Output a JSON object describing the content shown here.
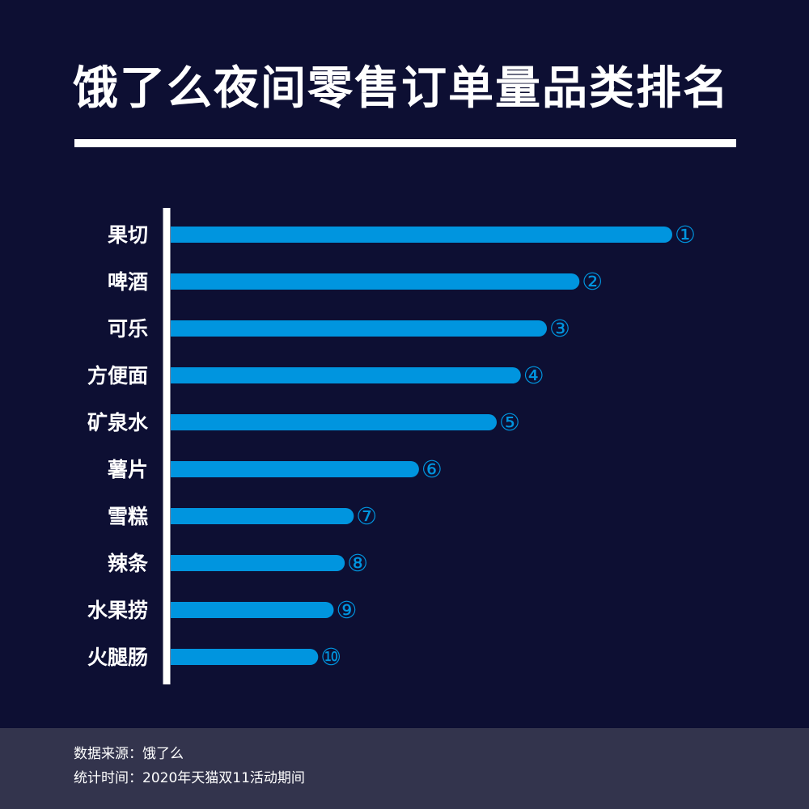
{
  "title": "饿了么夜间零售订单量品类排名",
  "colors": {
    "background": "#0d0f33",
    "bar": "#0095df",
    "rank_badge": "#0095df",
    "axis": "#ffffff",
    "text": "#ffffff",
    "footer_background": "#33344d"
  },
  "chart_data": {
    "type": "bar",
    "orientation": "horizontal",
    "title": "饿了么夜间零售订单量品类排名",
    "categories": [
      "果切",
      "啤酒",
      "可乐",
      "方便面",
      "矿泉水",
      "薯片",
      "雪糕",
      "辣条",
      "水果捞",
      "火腿肠"
    ],
    "rank_labels": [
      "①",
      "②",
      "③",
      "④",
      "⑤",
      "⑥",
      "⑦",
      "⑧",
      "⑨",
      "⑩"
    ],
    "values": [
      100,
      81.5,
      75,
      69.8,
      65,
      49.5,
      36.5,
      34.7,
      32.5,
      29.4
    ],
    "value_note": "relative bar lengths, longest bar = 100; no axis values are printed",
    "xlim": [
      0,
      100
    ],
    "grid": false,
    "legend": "none"
  },
  "footer": {
    "source": "数据来源：饿了么",
    "period": "统计时间：2020年天猫双11活动期间"
  }
}
